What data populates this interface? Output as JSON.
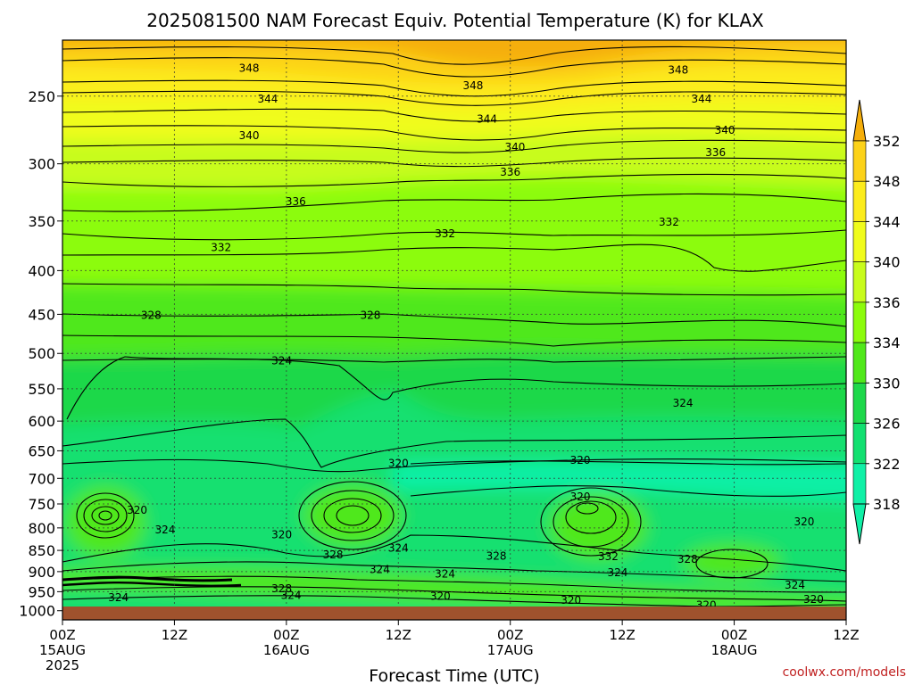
{
  "chart_data": {
    "type": "heatmap",
    "title": "2025081500 NAM Forecast Equiv. Potential Temperature (K) for KLAX",
    "xlabel": "Forecast Time (UTC)",
    "ylabel": "",
    "y_axis": "pressure (hPa), inverted",
    "ylim": [
      1025,
      215
    ],
    "y_ticks": [
      "250",
      "300",
      "350",
      "400",
      "450",
      "500",
      "550",
      "600",
      "650",
      "700",
      "750",
      "800",
      "850",
      "900",
      "950",
      "1000"
    ],
    "x_ticks": [
      {
        "hour": 0,
        "line1": "00Z",
        "line2": "15AUG",
        "line3": "2025"
      },
      {
        "hour": 12,
        "line1": "12Z",
        "line2": "",
        "line3": ""
      },
      {
        "hour": 24,
        "line1": "00Z",
        "line2": "16AUG",
        "line3": ""
      },
      {
        "hour": 36,
        "line1": "12Z",
        "line2": "",
        "line3": ""
      },
      {
        "hour": 48,
        "line1": "00Z",
        "line2": "17AUG",
        "line3": ""
      },
      {
        "hour": 60,
        "line1": "12Z",
        "line2": "",
        "line3": ""
      },
      {
        "hour": 72,
        "line1": "00Z",
        "line2": "18AUG",
        "line3": ""
      },
      {
        "hour": 84,
        "line1": "12Z",
        "line2": "",
        "line3": ""
      }
    ],
    "xlim": [
      0,
      84
    ],
    "grid": true,
    "colorbar": {
      "labels": [
        "352",
        "348",
        "344",
        "340",
        "336",
        "334",
        "330",
        "326",
        "322",
        "318"
      ],
      "colors": [
        "#f5ae0a",
        "#fcd219",
        "#fcec1c",
        "#f0fc1c",
        "#c8fc1c",
        "#8cfc0c",
        "#50e81a",
        "#1ed84a",
        "#12e070",
        "#10f0a6"
      ]
    },
    "contour_labels": [
      {
        "text": "348",
        "hour": 20,
        "p": 232
      },
      {
        "text": "348",
        "hour": 44,
        "p": 243
      },
      {
        "text": "348",
        "hour": 66,
        "p": 233
      },
      {
        "text": "344",
        "hour": 22,
        "p": 252
      },
      {
        "text": "344",
        "hour": 45.5,
        "p": 266
      },
      {
        "text": "344",
        "hour": 68.5,
        "p": 252
      },
      {
        "text": "340",
        "hour": 20,
        "p": 278
      },
      {
        "text": "340",
        "hour": 48.5,
        "p": 287
      },
      {
        "text": "340",
        "hour": 71,
        "p": 274
      },
      {
        "text": "336",
        "hour": 70,
        "p": 291
      },
      {
        "text": "336",
        "hour": 48,
        "p": 307
      },
      {
        "text": "336",
        "hour": 25,
        "p": 332
      },
      {
        "text": "332",
        "hour": 41,
        "p": 362
      },
      {
        "text": "332",
        "hour": 65,
        "p": 351
      },
      {
        "text": "332",
        "hour": 17,
        "p": 376
      },
      {
        "text": "328",
        "hour": 9.5,
        "p": 451
      },
      {
        "text": "328",
        "hour": 33,
        "p": 451
      },
      {
        "text": "324",
        "hour": 23.5,
        "p": 510
      },
      {
        "text": "324",
        "hour": 66.5,
        "p": 572
      },
      {
        "text": "320",
        "hour": 36,
        "p": 672
      },
      {
        "text": "320",
        "hour": 55.5,
        "p": 667
      },
      {
        "text": "320",
        "hour": 55.5,
        "p": 736
      },
      {
        "text": "320",
        "hour": 8,
        "p": 763
      },
      {
        "text": "324",
        "hour": 11,
        "p": 804
      },
      {
        "text": "320",
        "hour": 23.5,
        "p": 815
      },
      {
        "text": "328",
        "hour": 29,
        "p": 860
      },
      {
        "text": "324",
        "hour": 36,
        "p": 845
      },
      {
        "text": "328",
        "hour": 46.5,
        "p": 863
      },
      {
        "text": "332",
        "hour": 58.5,
        "p": 864
      },
      {
        "text": "328",
        "hour": 67,
        "p": 871
      },
      {
        "text": "320",
        "hour": 79.5,
        "p": 787
      },
      {
        "text": "324",
        "hour": 34,
        "p": 895
      },
      {
        "text": "324",
        "hour": 41,
        "p": 906
      },
      {
        "text": "324",
        "hour": 59.5,
        "p": 902
      },
      {
        "text": "324",
        "hour": 78.5,
        "p": 933
      },
      {
        "text": "328",
        "hour": 23.5,
        "p": 942
      },
      {
        "text": "324",
        "hour": 24.5,
        "p": 960
      },
      {
        "text": "324",
        "hour": 6,
        "p": 965
      },
      {
        "text": "320",
        "hour": 40.5,
        "p": 962
      },
      {
        "text": "320",
        "hour": 54.5,
        "p": 972
      },
      {
        "text": "320",
        "hour": 80.5,
        "p": 970
      },
      {
        "text": "320",
        "hour": 69,
        "p": 985
      }
    ]
  },
  "credit": "coolwx.com/models"
}
